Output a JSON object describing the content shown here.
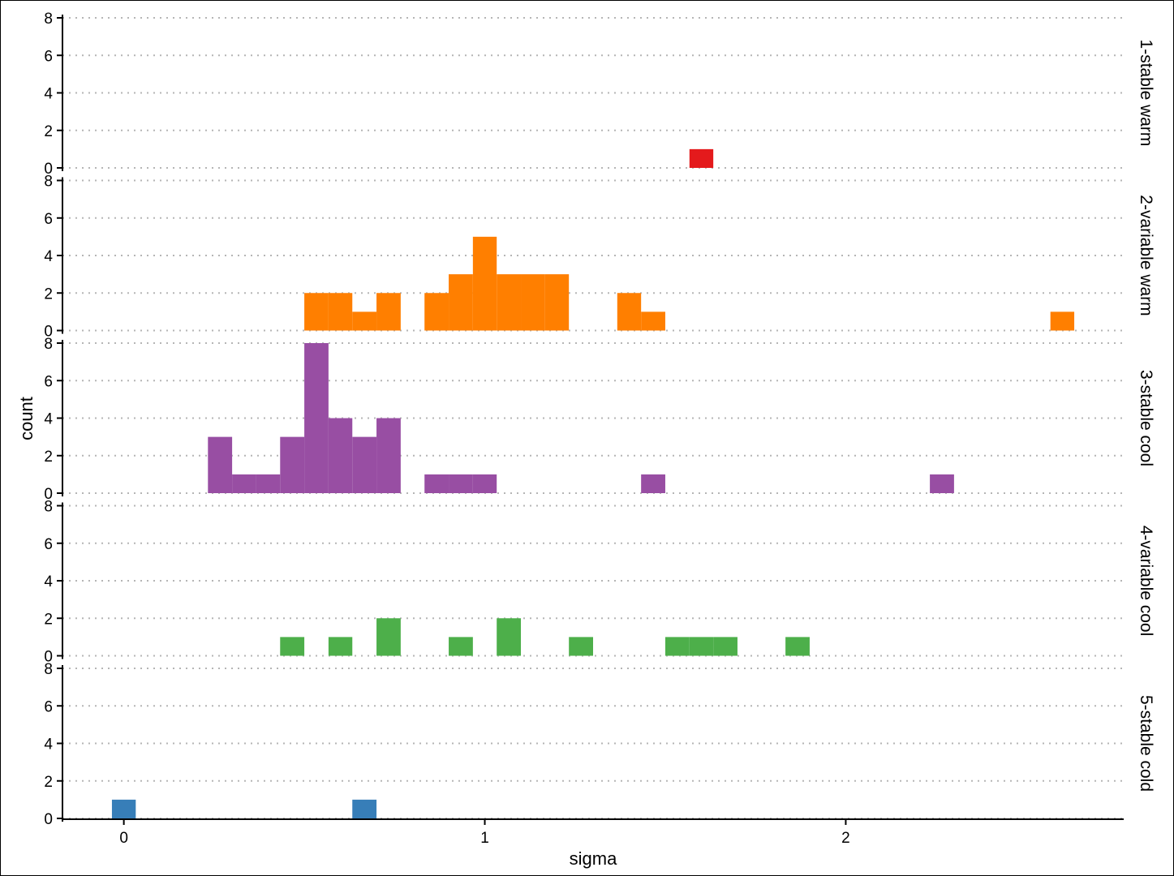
{
  "chart_data": {
    "type": "bar",
    "subtype": "faceted-histogram",
    "xlabel": "sigma",
    "ylabel": "count",
    "xlim": [
      -0.17,
      2.77
    ],
    "ylim": [
      0,
      8
    ],
    "x_ticks": [
      0,
      1,
      2
    ],
    "y_ticks": [
      0,
      2,
      4,
      6,
      8
    ],
    "bin_width": 0.0667,
    "grid": "horizontal-dotted",
    "legend": "none",
    "facets": [
      {
        "name": "1-stable warm",
        "color": "#e41a1c",
        "bins": [
          {
            "x0": 1.567,
            "x1": 1.633,
            "count": 1
          }
        ]
      },
      {
        "name": "2-variable warm",
        "color": "#ff7f00",
        "bins": [
          {
            "x0": 0.5,
            "x1": 0.567,
            "count": 2
          },
          {
            "x0": 0.567,
            "x1": 0.633,
            "count": 2
          },
          {
            "x0": 0.633,
            "x1": 0.7,
            "count": 1
          },
          {
            "x0": 0.7,
            "x1": 0.767,
            "count": 2
          },
          {
            "x0": 0.833,
            "x1": 0.9,
            "count": 2
          },
          {
            "x0": 0.9,
            "x1": 0.967,
            "count": 3
          },
          {
            "x0": 0.967,
            "x1": 1.033,
            "count": 5
          },
          {
            "x0": 1.033,
            "x1": 1.1,
            "count": 3
          },
          {
            "x0": 1.1,
            "x1": 1.167,
            "count": 3
          },
          {
            "x0": 1.167,
            "x1": 1.233,
            "count": 3
          },
          {
            "x0": 1.367,
            "x1": 1.433,
            "count": 2
          },
          {
            "x0": 1.433,
            "x1": 1.5,
            "count": 1
          },
          {
            "x0": 2.567,
            "x1": 2.633,
            "count": 1
          }
        ]
      },
      {
        "name": "3-stable cool",
        "color": "#984ea3",
        "bins": [
          {
            "x0": 0.233,
            "x1": 0.3,
            "count": 3
          },
          {
            "x0": 0.3,
            "x1": 0.367,
            "count": 1
          },
          {
            "x0": 0.367,
            "x1": 0.433,
            "count": 1
          },
          {
            "x0": 0.433,
            "x1": 0.5,
            "count": 3
          },
          {
            "x0": 0.5,
            "x1": 0.567,
            "count": 8
          },
          {
            "x0": 0.567,
            "x1": 0.633,
            "count": 4
          },
          {
            "x0": 0.633,
            "x1": 0.7,
            "count": 3
          },
          {
            "x0": 0.7,
            "x1": 0.767,
            "count": 4
          },
          {
            "x0": 0.833,
            "x1": 0.9,
            "count": 1
          },
          {
            "x0": 0.9,
            "x1": 0.967,
            "count": 1
          },
          {
            "x0": 0.967,
            "x1": 1.033,
            "count": 1
          },
          {
            "x0": 1.433,
            "x1": 1.5,
            "count": 1
          },
          {
            "x0": 2.233,
            "x1": 2.3,
            "count": 1
          }
        ]
      },
      {
        "name": "4-variable cool",
        "color": "#4daf4a",
        "bins": [
          {
            "x0": 0.433,
            "x1": 0.5,
            "count": 1
          },
          {
            "x0": 0.567,
            "x1": 0.633,
            "count": 1
          },
          {
            "x0": 0.7,
            "x1": 0.767,
            "count": 2
          },
          {
            "x0": 0.9,
            "x1": 0.967,
            "count": 1
          },
          {
            "x0": 1.033,
            "x1": 1.1,
            "count": 2
          },
          {
            "x0": 1.233,
            "x1": 1.3,
            "count": 1
          },
          {
            "x0": 1.5,
            "x1": 1.567,
            "count": 1
          },
          {
            "x0": 1.567,
            "x1": 1.633,
            "count": 1
          },
          {
            "x0": 1.633,
            "x1": 1.7,
            "count": 1
          },
          {
            "x0": 1.833,
            "x1": 1.9,
            "count": 1
          }
        ]
      },
      {
        "name": "5-stable cold",
        "color": "#377eb8",
        "bins": [
          {
            "x0": -0.033,
            "x1": 0.033,
            "count": 1
          },
          {
            "x0": 0.633,
            "x1": 0.7,
            "count": 1
          }
        ]
      }
    ]
  }
}
